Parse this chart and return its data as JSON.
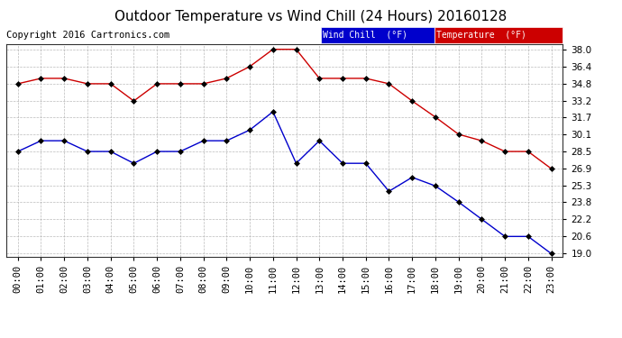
{
  "title": "Outdoor Temperature vs Wind Chill (24 Hours) 20160128",
  "copyright": "Copyright 2016 Cartronics.com",
  "x_labels": [
    "00:00",
    "01:00",
    "02:00",
    "03:00",
    "04:00",
    "05:00",
    "06:00",
    "07:00",
    "08:00",
    "09:00",
    "10:00",
    "11:00",
    "12:00",
    "13:00",
    "14:00",
    "15:00",
    "16:00",
    "17:00",
    "18:00",
    "19:00",
    "20:00",
    "21:00",
    "22:00",
    "23:00"
  ],
  "temperature": [
    34.8,
    35.3,
    35.3,
    34.8,
    34.8,
    33.2,
    34.8,
    34.8,
    34.8,
    35.3,
    36.4,
    38.0,
    38.0,
    35.3,
    35.3,
    35.3,
    34.8,
    33.2,
    31.7,
    30.1,
    29.5,
    28.5,
    28.5,
    26.9
  ],
  "wind_chill": [
    28.5,
    29.5,
    29.5,
    28.5,
    28.5,
    27.4,
    28.5,
    28.5,
    29.5,
    29.5,
    30.5,
    32.2,
    27.4,
    29.5,
    27.4,
    27.4,
    24.8,
    26.1,
    25.3,
    23.8,
    22.2,
    20.6,
    20.6,
    19.0
  ],
  "temp_color": "#cc0000",
  "wind_color": "#0000cc",
  "ylim_min": 19.0,
  "ylim_max": 38.0,
  "yticks": [
    19.0,
    20.6,
    22.2,
    23.8,
    25.3,
    26.9,
    28.5,
    30.1,
    31.7,
    33.2,
    34.8,
    36.4,
    38.0
  ],
  "background_color": "#ffffff",
  "plot_bg_color": "#ffffff",
  "grid_color": "#aaaaaa",
  "legend_wind_bg": "#0000cc",
  "legend_temp_bg": "#cc0000",
  "legend_text_color": "#ffffff",
  "title_fontsize": 11,
  "tick_fontsize": 7.5,
  "copyright_fontsize": 7.5
}
